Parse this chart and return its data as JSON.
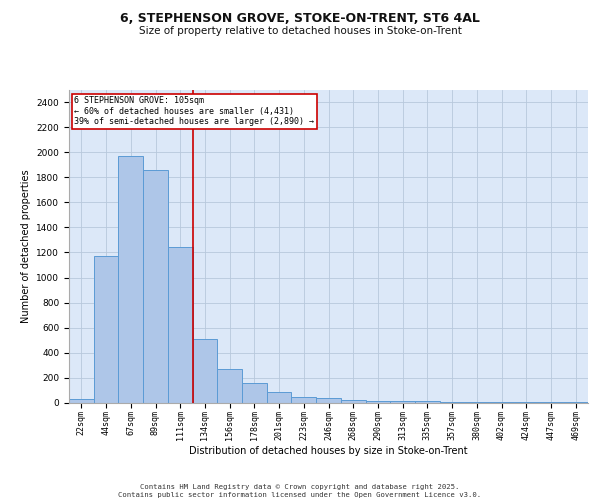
{
  "title_line1": "6, STEPHENSON GROVE, STOKE-ON-TRENT, ST6 4AL",
  "title_line2": "Size of property relative to detached houses in Stoke-on-Trent",
  "xlabel": "Distribution of detached houses by size in Stoke-on-Trent",
  "ylabel": "Number of detached properties",
  "bin_labels": [
    "22sqm",
    "44sqm",
    "67sqm",
    "89sqm",
    "111sqm",
    "134sqm",
    "156sqm",
    "178sqm",
    "201sqm",
    "223sqm",
    "246sqm",
    "268sqm",
    "290sqm",
    "313sqm",
    "335sqm",
    "357sqm",
    "380sqm",
    "402sqm",
    "424sqm",
    "447sqm",
    "469sqm"
  ],
  "bar_values": [
    25,
    1170,
    1970,
    1860,
    1240,
    510,
    270,
    155,
    85,
    45,
    38,
    20,
    15,
    12,
    10,
    8,
    5,
    3,
    2,
    2,
    5
  ],
  "bar_color": "#aec6e8",
  "bar_edge_color": "#5b9bd5",
  "background_color": "#dce8f8",
  "grid_color": "#b8c8dc",
  "red_line_x": 4.5,
  "annotation_text_line1": "6 STEPHENSON GROVE: 105sqm",
  "annotation_text_line2": "← 60% of detached houses are smaller (4,431)",
  "annotation_text_line3": "39% of semi-detached houses are larger (2,890) →",
  "red_line_color": "#cc0000",
  "annotation_box_color": "#ffffff",
  "annotation_box_edge": "#cc0000",
  "ylim": [
    0,
    2500
  ],
  "yticks": [
    0,
    200,
    400,
    600,
    800,
    1000,
    1200,
    1400,
    1600,
    1800,
    2000,
    2200,
    2400
  ],
  "footer_line1": "Contains HM Land Registry data © Crown copyright and database right 2025.",
  "footer_line2": "Contains public sector information licensed under the Open Government Licence v3.0."
}
